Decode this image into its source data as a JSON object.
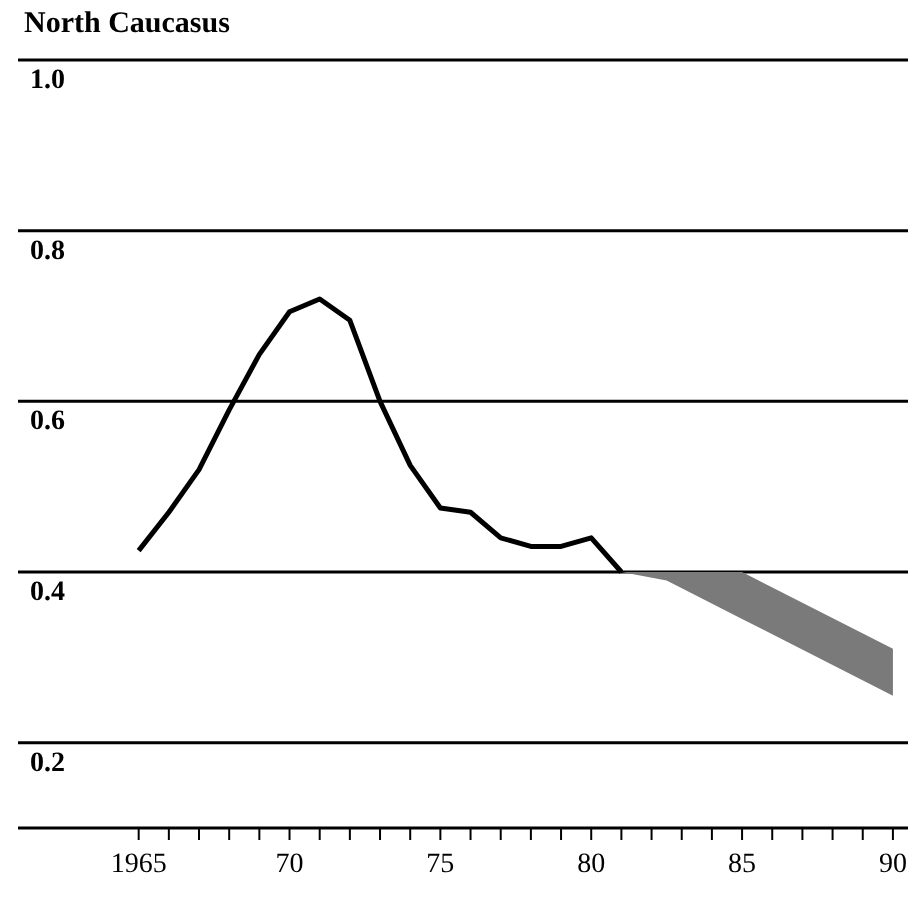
{
  "chart_data": {
    "type": "line",
    "title": "North Caucasus",
    "series": [
      {
        "color": "#000000",
        "x": [
          1965,
          1966,
          1967,
          1968,
          1969,
          1970,
          1971,
          1972,
          1973,
          1974,
          1975,
          1976,
          1977,
          1978,
          1979,
          1980,
          1981,
          1982.5,
          1985,
          1990
        ],
        "values": [
          0.425,
          0.47,
          0.52,
          0.59,
          0.655,
          0.705,
          0.72,
          0.695,
          0.6,
          0.525,
          0.475,
          0.47,
          0.44,
          0.43,
          0.43,
          0.44,
          0.4,
          null,
          null,
          null
        ],
        "lower": [
          null,
          null,
          null,
          null,
          null,
          null,
          null,
          null,
          null,
          null,
          null,
          null,
          null,
          null,
          null,
          null,
          0.4,
          0.39,
          0.345,
          0.255
        ],
        "upper": [
          null,
          null,
          null,
          null,
          null,
          null,
          null,
          null,
          null,
          null,
          null,
          null,
          null,
          null,
          null,
          null,
          0.4,
          0.4,
          0.4,
          0.31
        ]
      }
    ],
    "xlim": [
      1961,
      1990.5
    ],
    "xticks": [
      1965,
      {
        "value": 1966,
        "label": null
      },
      {
        "value": 1967,
        "label": null
      },
      {
        "value": 1968,
        "label": null
      },
      {
        "value": 1969,
        "label": null
      },
      {
        "value": 1970,
        "label": "70"
      },
      {
        "value": 1971,
        "label": null
      },
      {
        "value": 1972,
        "label": null
      },
      {
        "value": 1973,
        "label": null
      },
      {
        "value": 1974,
        "label": null
      },
      {
        "value": 1975,
        "label": "75"
      },
      {
        "value": 1976,
        "label": null
      },
      {
        "value": 1977,
        "label": null
      },
      {
        "value": 1978,
        "label": null
      },
      {
        "value": 1979,
        "label": null
      },
      {
        "value": 1980,
        "label": "80"
      },
      {
        "value": 1981,
        "label": null
      },
      {
        "value": 1982,
        "label": null
      },
      {
        "value": 1983,
        "label": null
      },
      {
        "value": 1984,
        "label": null
      },
      {
        "value": 1985,
        "label": "85"
      },
      {
        "value": 1986,
        "label": null
      },
      {
        "value": 1987,
        "label": null
      },
      {
        "value": 1988,
        "label": null
      },
      {
        "value": 1989,
        "label": null
      },
      {
        "value": 1990,
        "label": "90"
      }
    ],
    "ylim": [
      0.1,
      1.0
    ],
    "yticks": [
      0.2,
      0.4,
      0.6,
      0.8,
      {
        "value": 1,
        "label": "1.0"
      }
    ],
    "grid": "y",
    "legend": false,
    "marker": "none",
    "line_style": "solid"
  }
}
